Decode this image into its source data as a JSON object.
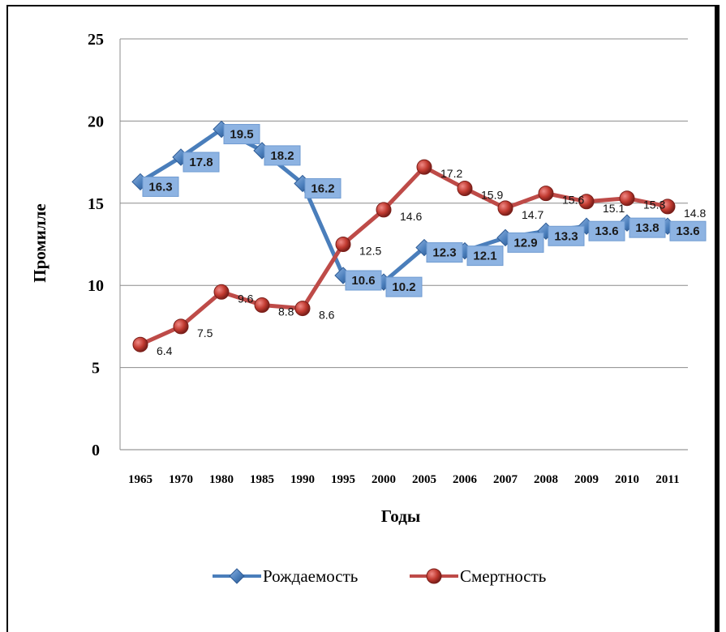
{
  "chart_data": {
    "type": "line",
    "categories": [
      "1965",
      "1970",
      "1980",
      "1985",
      "1990",
      "1995",
      "2000",
      "2005",
      "2006",
      "2007",
      "2008",
      "2009",
      "2010",
      "2011"
    ],
    "series": [
      {
        "name": "Рождаемость",
        "color": "#4a7ebb",
        "marker": "diamond",
        "values": [
          16.3,
          17.8,
          19.5,
          18.2,
          16.2,
          10.6,
          10.2,
          12.3,
          12.1,
          12.9,
          13.3,
          13.6,
          13.8,
          13.6
        ]
      },
      {
        "name": "Смертность",
        "color": "#be4b48",
        "marker": "circle",
        "values": [
          6.4,
          7.5,
          9.6,
          8.8,
          8.6,
          12.5,
          14.6,
          17.2,
          15.9,
          14.7,
          15.6,
          15.1,
          15.3,
          14.8
        ]
      }
    ],
    "xlabel": "Годы",
    "ylabel": "Промилле",
    "ylim": [
      0,
      25
    ],
    "yticks": [
      0,
      5,
      10,
      15,
      20,
      25
    ],
    "grid": true,
    "legend": "bottom"
  }
}
